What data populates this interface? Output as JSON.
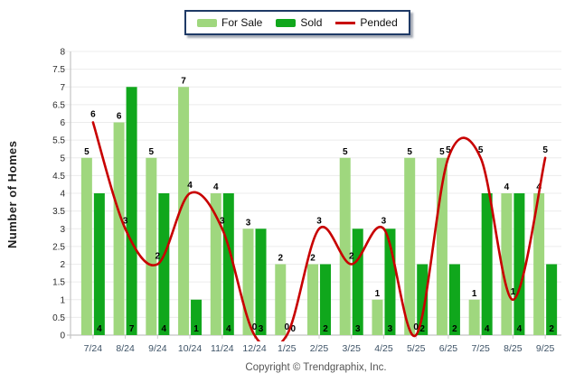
{
  "legend": {
    "items": [
      {
        "label": "For Sale",
        "type": "bar",
        "color": "#9FD77E"
      },
      {
        "label": "Sold",
        "type": "bar",
        "color": "#10A71C"
      },
      {
        "label": "Pended",
        "type": "line",
        "color": "#C80000"
      }
    ]
  },
  "y_axis_title": "Number of Homes",
  "footer": "Copyright © Trendgraphix, Inc.",
  "chart_data": {
    "type": "bar+line",
    "title": "",
    "categories": [
      "7/24",
      "8/24",
      "9/24",
      "10/24",
      "11/24",
      "12/24",
      "1/25",
      "2/25",
      "3/25",
      "4/25",
      "5/25",
      "6/25",
      "7/25",
      "8/25",
      "9/25"
    ],
    "series": [
      {
        "name": "For Sale",
        "type": "bar",
        "color": "#9FD77E",
        "values": [
          5,
          6,
          5,
          7,
          4,
          3,
          2,
          2,
          5,
          1,
          5,
          5,
          1,
          4,
          4
        ]
      },
      {
        "name": "Sold",
        "type": "bar",
        "color": "#10A71C",
        "values": [
          4,
          7,
          4,
          1,
          4,
          3,
          0,
          2,
          3,
          3,
          2,
          2,
          4,
          4,
          2
        ]
      },
      {
        "name": "Pended",
        "type": "line",
        "color": "#C80000",
        "values": [
          6,
          3,
          2,
          4,
          3,
          0,
          0,
          3,
          2,
          3,
          0,
          5,
          5,
          1,
          5
        ]
      }
    ],
    "xlabel": "",
    "ylabel": "Number of Homes",
    "ylim": [
      0,
      8
    ],
    "ytick_step": 0.5,
    "grid": true,
    "legend_position": "top",
    "colors": {
      "y_tick_label": "#2B2B2B",
      "x_tick_label": "#3D5266",
      "grid": "#ECECEC",
      "axis": "#C4C4C4",
      "tick": "#CCCCCC",
      "value_label": "#000000"
    }
  }
}
